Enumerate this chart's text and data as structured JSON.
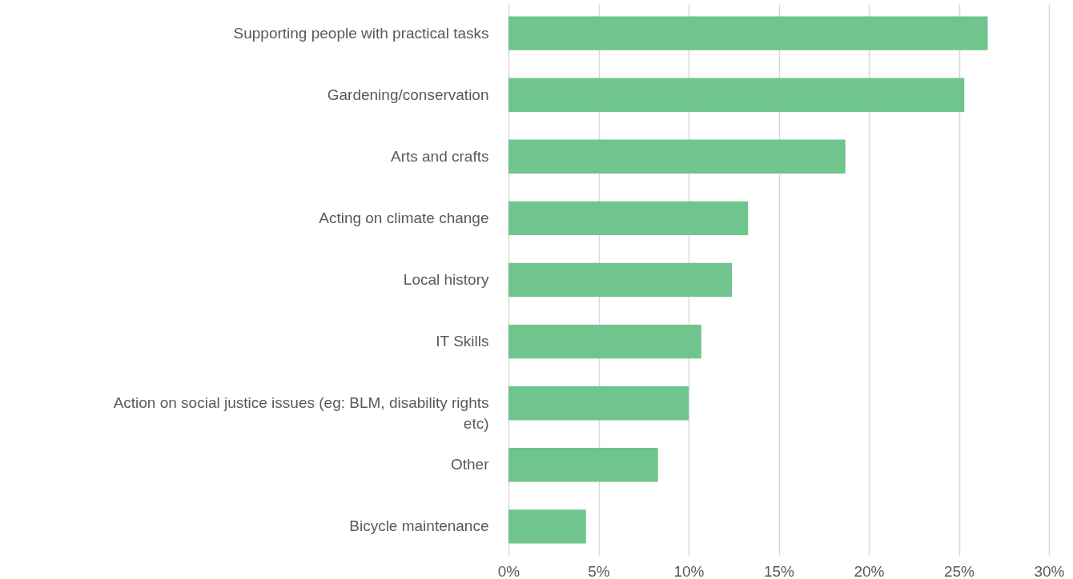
{
  "chart_data": {
    "type": "bar",
    "orientation": "horizontal",
    "categories": [
      "Supporting people with practical tasks",
      "Gardening/conservation",
      "Arts and crafts",
      "Acting on climate change",
      "Local history",
      "IT Skills",
      "Action on social justice issues (eg: BLM, disability rights etc)",
      "Other",
      "Bicycle maintenance"
    ],
    "values": [
      26.6,
      25.3,
      18.7,
      13.3,
      12.4,
      10.7,
      10.0,
      8.3,
      4.3
    ],
    "color": "#70c48d",
    "xlim": [
      0,
      30
    ],
    "xticks": [
      {
        "value": 0,
        "label": "0%"
      },
      {
        "value": 5,
        "label": "5%"
      },
      {
        "value": 10,
        "label": "10%"
      },
      {
        "value": 15,
        "label": "15%"
      },
      {
        "value": 20,
        "label": "20%"
      },
      {
        "value": 25,
        "label": "25%"
      },
      {
        "value": 30,
        "label": "30%"
      }
    ],
    "grid": "x"
  }
}
